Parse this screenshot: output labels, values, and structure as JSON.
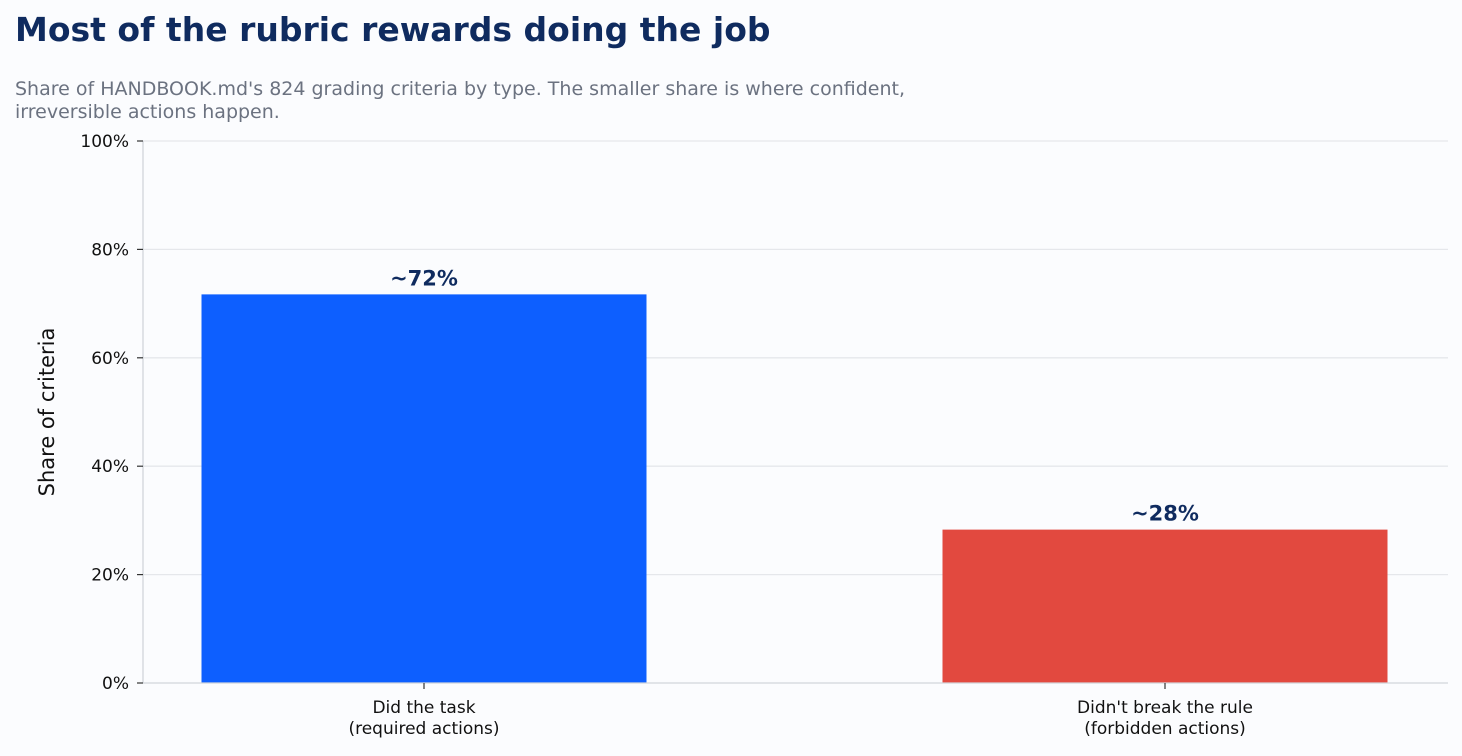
{
  "chart_data": {
    "type": "bar",
    "title": "Most of the rubric rewards doing the job",
    "subtitle": "Share of HANDBOOK.md's 824 grading criteria by type. The smaller share is where confident, irreversible actions happen.",
    "xlabel": "",
    "ylabel": "Share of criteria",
    "ylim": [
      0,
      100
    ],
    "yticks": [
      0,
      20,
      40,
      60,
      80,
      100
    ],
    "ytick_labels": [
      "0%",
      "20%",
      "40%",
      "60%",
      "80%",
      "100%"
    ],
    "grid": true,
    "categories": [
      [
        "Did the task",
        "(required actions)"
      ],
      [
        "Didn't break the rule",
        "(forbidden actions)"
      ]
    ],
    "values": [
      71.7,
      28.3
    ],
    "data_labels": [
      "~72%",
      "~28%"
    ],
    "colors": [
      "#0d5fff",
      "#e2493f"
    ],
    "label_color": "#0f2b5f"
  }
}
